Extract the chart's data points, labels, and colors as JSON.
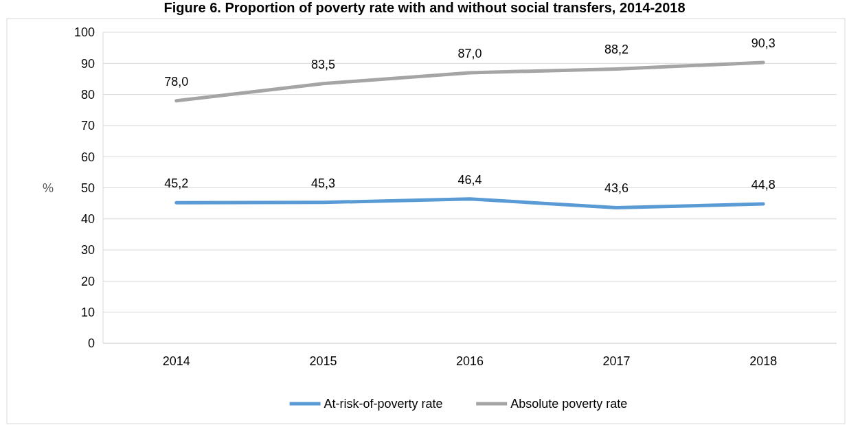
{
  "chart_data": {
    "type": "line",
    "title": "Figure 6. Proportion of poverty rate with and without social transfers, 2014-2018",
    "ylabel": "%",
    "categories": [
      "2014",
      "2015",
      "2016",
      "2017",
      "2018"
    ],
    "series": [
      {
        "name": "At-risk-of-poverty rate",
        "color": "#5b9bd5",
        "values": [
          45.2,
          45.3,
          46.4,
          43.6,
          44.8
        ]
      },
      {
        "name": "Absolute poverty rate",
        "color": "#a5a5a5",
        "values": [
          78.0,
          83.5,
          87.0,
          88.2,
          90.3
        ]
      }
    ],
    "value_labels": [
      [
        "45,2",
        "45,3",
        "46,4",
        "43,6",
        "44,8"
      ],
      [
        "78,0",
        "83,5",
        "87,0",
        "88,2",
        "90,3"
      ]
    ],
    "ylim": [
      0,
      100
    ],
    "yticks": [
      0,
      10,
      20,
      30,
      40,
      50,
      60,
      70,
      80,
      90,
      100
    ],
    "grid": "y",
    "legend": "bottom",
    "marker": "none",
    "line_style": "solid"
  }
}
